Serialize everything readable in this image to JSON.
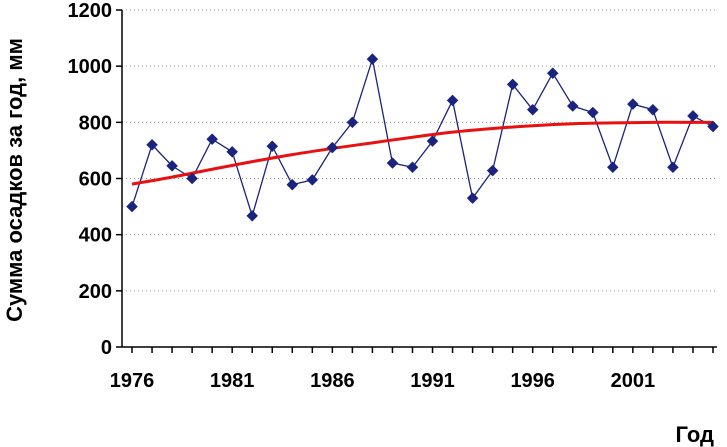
{
  "chart_data": {
    "type": "line",
    "title": "",
    "xlabel": "Год",
    "ylabel": "Сумма осадков за год, мм",
    "ylim": [
      0,
      1200
    ],
    "xlim": [
      1976,
      2004
    ],
    "x_ticks": [
      "1976",
      "1981",
      "1986",
      "1991",
      "1996",
      "2001"
    ],
    "y_ticks": [
      "0",
      "200",
      "400",
      "600",
      "800",
      "1000",
      "1200"
    ],
    "grid": "horizontal-dotted",
    "legend": "none",
    "series": [
      {
        "style": "line-diamond-markers",
        "color": "#1a237e",
        "x": [
          1976,
          1977,
          1978,
          1979,
          1980,
          1981,
          1982,
          1983,
          1984,
          1985,
          1986,
          1987,
          1988,
          1989,
          1990,
          1991,
          1992,
          1993,
          1994,
          1995,
          1996,
          1997,
          1998,
          1999,
          2000,
          2001,
          2002,
          2003,
          2004,
          2005
        ],
        "values": [
          500,
          720,
          645,
          600,
          740,
          695,
          467,
          715,
          578,
          595,
          710,
          800,
          1025,
          655,
          640,
          733,
          878,
          530,
          628,
          935,
          845,
          975,
          858,
          835,
          640,
          865,
          845,
          640,
          823,
          785
        ]
      },
      {
        "style": "smooth-trend-line",
        "color": "#e81010",
        "x": [
          1976,
          1978,
          1980,
          1982,
          1984,
          1986,
          1988,
          1990,
          1992,
          1994,
          1996,
          1998,
          2000,
          2002,
          2004,
          2005
        ],
        "values": [
          580,
          605,
          633,
          660,
          685,
          707,
          727,
          747,
          765,
          778,
          788,
          795,
          798,
          800,
          800,
          800
        ]
      }
    ]
  }
}
